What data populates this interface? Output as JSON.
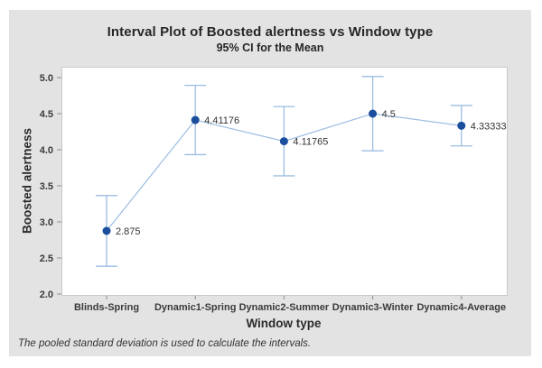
{
  "chart_data": {
    "type": "interval",
    "title": "Interval Plot of Boosted alertness vs Window type",
    "subtitle": "95% CI for the Mean",
    "xlabel": "Window type",
    "ylabel": "Boosted alertness",
    "footnote": "The pooled standard deviation is used to calculate the intervals.",
    "categories": [
      "Blinds-Spring",
      "Dynamic1-Spring",
      "Dynamic2-Summer",
      "Dynamic3-Winter",
      "Dynamic4-Average"
    ],
    "points": [
      {
        "category": "Blinds-Spring",
        "mean": 2.875,
        "label": "2.875",
        "ci_lower": 2.385,
        "ci_upper": 3.365
      },
      {
        "category": "Dynamic1-Spring",
        "mean": 4.41176,
        "label": "4.41176",
        "ci_lower": 3.932,
        "ci_upper": 4.892
      },
      {
        "category": "Dynamic2-Summer",
        "mean": 4.11765,
        "label": "4.11765",
        "ci_lower": 3.638,
        "ci_upper": 4.598
      },
      {
        "category": "Dynamic3-Winter",
        "mean": 4.5,
        "label": "4.5",
        "ci_lower": 3.985,
        "ci_upper": 5.015
      },
      {
        "category": "Dynamic4-Average",
        "mean": 4.33333,
        "label": "4.33333",
        "ci_lower": 4.053,
        "ci_upper": 4.613
      }
    ],
    "yticks": [
      5.0,
      4.5,
      4.0,
      3.5,
      3.0,
      2.5,
      2.0
    ],
    "ytick_labels": [
      "5.0",
      "4.5",
      "4.0",
      "3.5",
      "3.0",
      "2.5",
      "2.0"
    ],
    "ylim": [
      2.0,
      5.15
    ],
    "grid": false,
    "legend": "none"
  },
  "colors": {
    "canvas_bg": "#e3e3e3",
    "plot_bg": "#ffffff",
    "plot_border": "#c9c9c9",
    "interval": "#9dbde2",
    "marker": "#1b4f9e",
    "tick": "#8f8f8f",
    "text": "#333333"
  }
}
